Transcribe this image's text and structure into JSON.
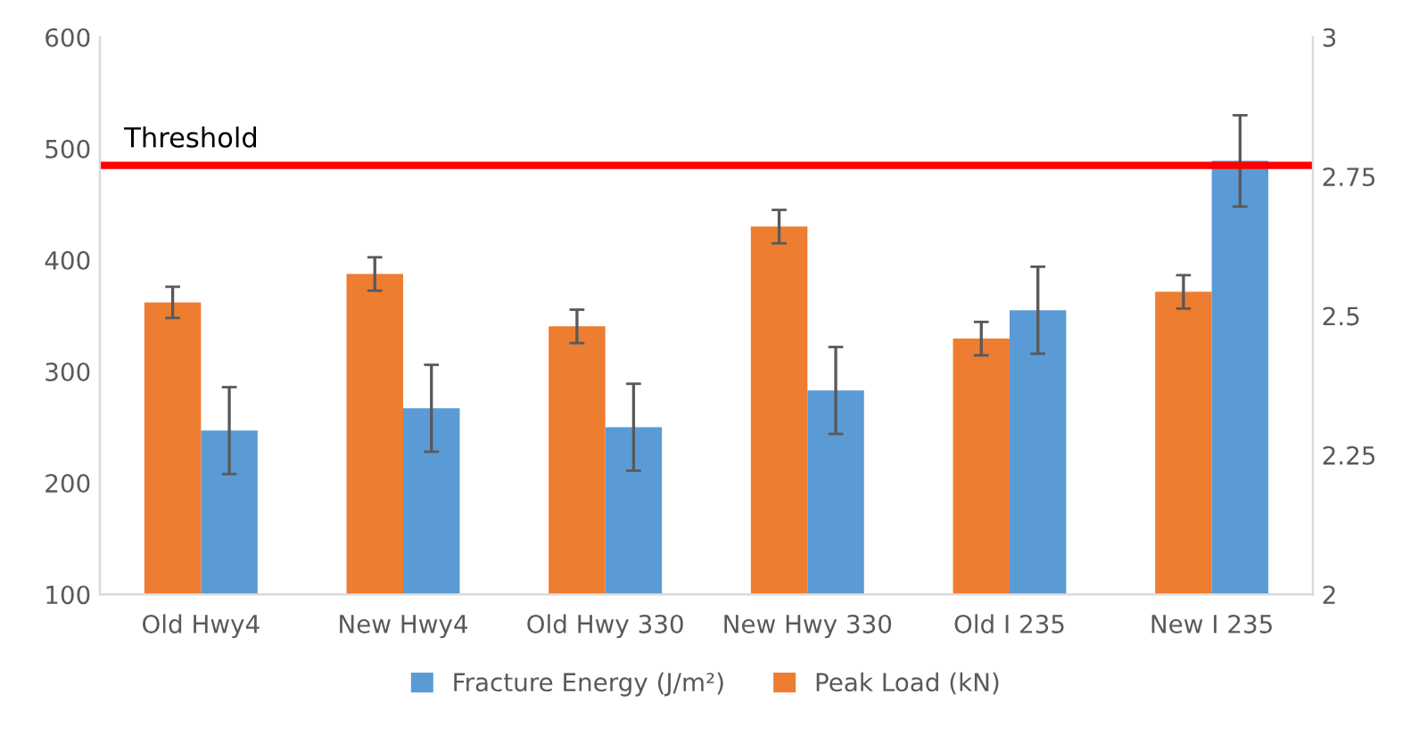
{
  "chart_data": {
    "type": "bar",
    "categories": [
      "Old Hwy4",
      "New Hwy4",
      "Old Hwy 330",
      "New Hwy 330",
      "Old I 235",
      "New I 235"
    ],
    "series": [
      {
        "name": "Fracture Energy (J/m²)",
        "color": "#5b9bd5",
        "values": [
          247,
          267,
          250,
          283,
          355,
          489
        ],
        "errors": [
          39,
          39,
          39,
          39,
          39,
          41
        ]
      },
      {
        "name": "Peak Load (kN)",
        "color": "#ed7d31",
        "axis": "y2",
        "values": [
          2.524,
          2.575,
          2.481,
          2.66,
          2.459,
          2.543
        ],
        "errors": [
          0.028,
          0.03,
          0.03,
          0.03,
          0.03,
          0.03
        ]
      }
    ],
    "ylim": [
      100,
      600
    ],
    "yticks": [
      100,
      200,
      300,
      400,
      500,
      600
    ],
    "y2lim": [
      2,
      3
    ],
    "y2ticks": [
      2,
      2.25,
      2.5,
      2.75,
      3
    ],
    "ref_lines": [
      {
        "axis": "y",
        "value": 485,
        "label": "Threshold",
        "color": "#ff0000"
      }
    ],
    "grid": false,
    "legend": "bottom"
  }
}
